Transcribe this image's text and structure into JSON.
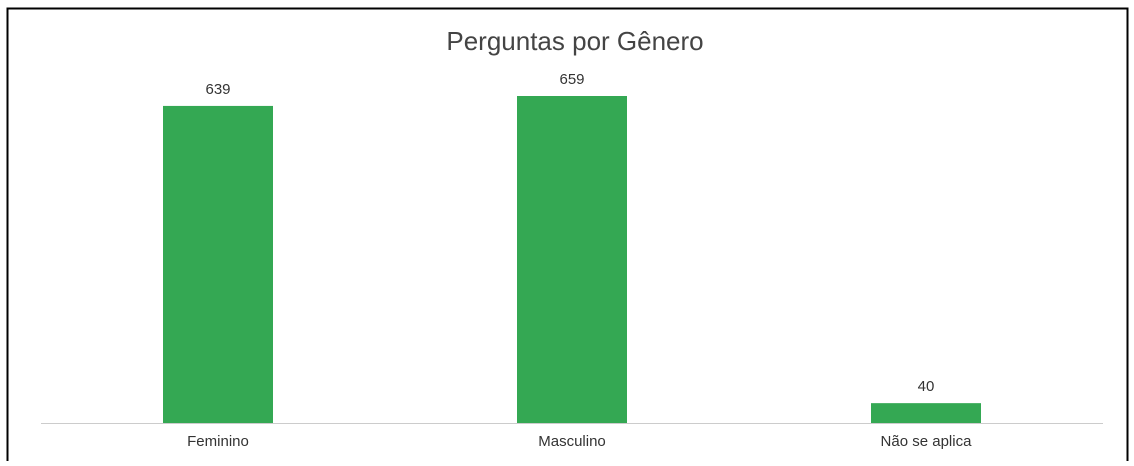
{
  "chart_data": {
    "type": "bar",
    "title": "Perguntas por Gênero",
    "categories": [
      "Feminino",
      "Masculino",
      "Não se aplica"
    ],
    "values": [
      639,
      659,
      40
    ],
    "color": "#34a853"
  }
}
